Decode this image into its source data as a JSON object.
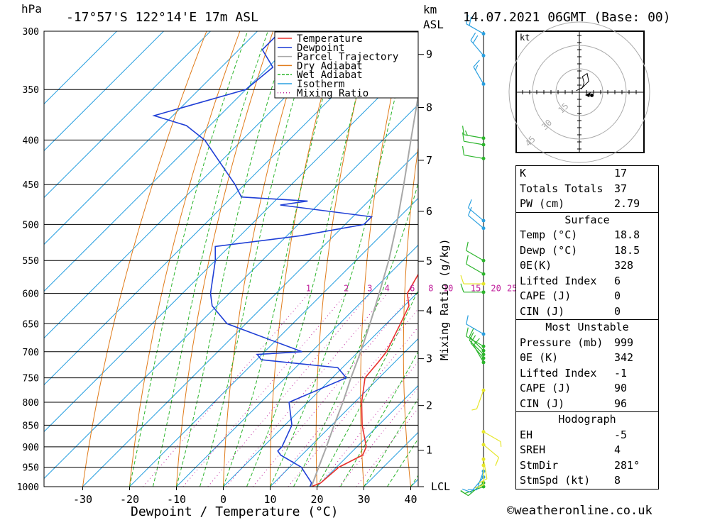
{
  "header": {
    "hpa_unit": "hPa",
    "location": "-17°57'S 122°14'E 17m ASL",
    "km_unit": "km",
    "asl": "ASL",
    "date": "14.07.2021 06GMT (Base: 00)"
  },
  "hodo_unit": "kt",
  "colors": {
    "temperature": "#e8302c",
    "dewpoint": "#1f3fd6",
    "parcel": "#a8a8a8",
    "dry_adiabat": "#e07b1a",
    "wet_adiabat": "#2cb52c",
    "isotherm": "#2aa0e0",
    "mixing_ratio": "#c0209c"
  },
  "chart_data": {
    "type": "line",
    "title": "",
    "xlabel": "Dewpoint / Temperature (°C)",
    "ylabel": "hPa",
    "y2label": "Mixing Ratio (g/kg)",
    "xlim": [
      -40,
      40
    ],
    "ylim": [
      1000,
      300
    ],
    "x_ticks": [
      -30,
      -20,
      -10,
      0,
      10,
      20,
      30,
      40
    ],
    "pressure_ticks": [
      1000,
      950,
      900,
      850,
      800,
      750,
      700,
      650,
      600,
      550,
      500,
      450,
      400,
      350,
      300
    ],
    "height_ticks": [
      {
        "label": "1",
        "p": 908
      },
      {
        "label": "2",
        "p": 807
      },
      {
        "label": "3",
        "p": 713
      },
      {
        "label": "4",
        "p": 628
      },
      {
        "label": "5",
        "p": 551
      },
      {
        "label": "6",
        "p": 483
      },
      {
        "label": "7",
        "p": 422
      },
      {
        "label": "8",
        "p": 367
      },
      {
        "label": "9",
        "p": 319
      },
      {
        "label": "LCL",
        "p": 1000
      }
    ],
    "mixing_ratio_labels": [
      "1",
      "2",
      "3",
      "4",
      "6",
      "8",
      "10",
      "15",
      "20",
      "25"
    ],
    "legend": [
      "Temperature",
      "Dewpoint",
      "Parcel Trajectory",
      "Dry Adiabat",
      "Wet Adiabat",
      "Isotherm",
      "Mixing Ratio"
    ],
    "legend_position": "top-right",
    "series": [
      {
        "name": "Temperature",
        "points": [
          [
            1000,
            18.8
          ],
          [
            990,
            20.0
          ],
          [
            950,
            20.5
          ],
          [
            920,
            23.0
          ],
          [
            900,
            22.0
          ],
          [
            850,
            16.5
          ],
          [
            800,
            11.5
          ],
          [
            750,
            7.0
          ],
          [
            720,
            6.5
          ],
          [
            700,
            6.0
          ],
          [
            650,
            3.0
          ],
          [
            620,
            1.0
          ],
          [
            600,
            -2.0
          ],
          [
            550,
            -5.0
          ],
          [
            530,
            -6.5
          ],
          [
            500,
            -10.0
          ],
          [
            480,
            -11.5
          ],
          [
            460,
            -12.0
          ],
          [
            450,
            -13.5
          ],
          [
            420,
            -17.0
          ],
          [
            400,
            -21.0
          ],
          [
            385,
            -23.0
          ],
          [
            370,
            -24.0
          ],
          [
            350,
            -28.0
          ]
        ]
      },
      {
        "name": "Dewpoint",
        "points": [
          [
            1000,
            18.5
          ],
          [
            990,
            18.0
          ],
          [
            950,
            12.5
          ],
          [
            920,
            5.5
          ],
          [
            910,
            4.0
          ],
          [
            900,
            4.0
          ],
          [
            850,
            1.5
          ],
          [
            800,
            -4.0
          ],
          [
            750,
            3.0
          ],
          [
            730,
            -1.0
          ],
          [
            715,
            -19.0
          ],
          [
            705,
            -21.0
          ],
          [
            700,
            -12.0
          ],
          [
            650,
            -34.0
          ],
          [
            620,
            -41.0
          ],
          [
            600,
            -44.0
          ],
          [
            550,
            -50.0
          ],
          [
            530,
            -53.0
          ],
          [
            515,
            -37.0
          ],
          [
            500,
            -26.0
          ],
          [
            490,
            -26.0
          ],
          [
            475,
            -48.0
          ],
          [
            470,
            -43.0
          ],
          [
            465,
            -58.0
          ],
          [
            450,
            -62.0
          ],
          [
            400,
            -78.0
          ],
          [
            385,
            -85.0
          ],
          [
            375,
            -94.0
          ],
          [
            350,
            -80.0
          ],
          [
            330,
            -79.0
          ],
          [
            315,
            -85.0
          ],
          [
            300,
            -85.0
          ]
        ]
      },
      {
        "name": "Parcel Trajectory",
        "points": [
          [
            1000,
            18.8
          ],
          [
            950,
            16.2
          ],
          [
            900,
            13.5
          ],
          [
            850,
            10.5
          ],
          [
            800,
            7.5
          ],
          [
            750,
            4.0
          ],
          [
            700,
            0.5
          ],
          [
            650,
            -3.5
          ],
          [
            600,
            -8.0
          ],
          [
            550,
            -13.0
          ],
          [
            500,
            -19.0
          ],
          [
            450,
            -26.0
          ],
          [
            400,
            -34.0
          ],
          [
            350,
            -43.0
          ],
          [
            300,
            -54.0
          ]
        ]
      }
    ],
    "winds": [
      {
        "p": 1000,
        "dir": 250,
        "kt": 5,
        "color": "#2cb52c"
      },
      {
        "p": 990,
        "dir": 230,
        "kt": 10,
        "color": "#2cb52c"
      },
      {
        "p": 975,
        "dir": 220,
        "kt": 10,
        "color": "#2aa0e0"
      },
      {
        "p": 960,
        "dir": 200,
        "kt": 10,
        "color": "#2aa0e0"
      },
      {
        "p": 945,
        "dir": 180,
        "kt": 10,
        "color": "#e6e62a"
      },
      {
        "p": 930,
        "dir": 170,
        "kt": 10,
        "color": "#e6e62a"
      },
      {
        "p": 895,
        "dir": 130,
        "kt": 10,
        "color": "#e6e62a"
      },
      {
        "p": 865,
        "dir": 120,
        "kt": 5,
        "color": "#e6e62a"
      },
      {
        "p": 775,
        "dir": 200,
        "kt": 5,
        "color": "#e6e62a"
      },
      {
        "p": 720,
        "dir": 330,
        "kt": 10,
        "color": "#2cb52c"
      },
      {
        "p": 712,
        "dir": 320,
        "kt": 10,
        "color": "#2cb52c"
      },
      {
        "p": 705,
        "dir": 315,
        "kt": 10,
        "color": "#2cb52c"
      },
      {
        "p": 698,
        "dir": 315,
        "kt": 10,
        "color": "#2cb52c"
      },
      {
        "p": 690,
        "dir": 300,
        "kt": 10,
        "color": "#2cb52c"
      },
      {
        "p": 668,
        "dir": 300,
        "kt": 10,
        "color": "#2aa0e0"
      },
      {
        "p": 598,
        "dir": 270,
        "kt": 10,
        "color": "#2cb52c"
      },
      {
        "p": 585,
        "dir": 270,
        "kt": 10,
        "color": "#e6e62a"
      },
      {
        "p": 570,
        "dir": 300,
        "kt": 10,
        "color": "#2cb52c"
      },
      {
        "p": 550,
        "dir": 300,
        "kt": 10,
        "color": "#2cb52c"
      },
      {
        "p": 505,
        "dir": 310,
        "kt": 10,
        "color": "#2aa0e0"
      },
      {
        "p": 495,
        "dir": 310,
        "kt": 10,
        "color": "#2aa0e0"
      },
      {
        "p": 420,
        "dir": 280,
        "kt": 10,
        "color": "#2cb52c"
      },
      {
        "p": 405,
        "dir": 280,
        "kt": 10,
        "color": "#2cb52c"
      },
      {
        "p": 398,
        "dir": 280,
        "kt": 15,
        "color": "#2cb52c"
      },
      {
        "p": 345,
        "dir": 330,
        "kt": 15,
        "color": "#2aa0e0"
      },
      {
        "p": 320,
        "dir": 320,
        "kt": 20,
        "color": "#2aa0e0"
      },
      {
        "p": 302,
        "dir": 300,
        "kt": 20,
        "color": "#2aa0e0"
      }
    ],
    "hodograph": {
      "rings_kt": [
        15,
        30,
        45
      ],
      "points_uv": [
        [
          -2,
          1
        ],
        [
          2,
          3
        ],
        [
          3,
          6
        ],
        [
          2,
          10
        ],
        [
          5,
          12
        ],
        [
          6,
          7
        ],
        [
          3,
          4
        ],
        [
          1,
          2
        ]
      ],
      "storm_motion_uv": [
        8,
        -2
      ]
    }
  },
  "indices": [
    {
      "label": "K",
      "value": "17"
    },
    {
      "label": "Totals Totals",
      "value": "37"
    },
    {
      "label": "PW (cm)",
      "value": "2.79"
    }
  ],
  "surface": {
    "title": "Surface",
    "rows": [
      {
        "label": "Temp (°C)",
        "value": "18.8"
      },
      {
        "label": "Dewp (°C)",
        "value": "18.5"
      },
      {
        "label": "θE(K)",
        "value": "328"
      },
      {
        "label": "Lifted Index",
        "value": "6"
      },
      {
        "label": "CAPE (J)",
        "value": "0"
      },
      {
        "label": "CIN (J)",
        "value": "0"
      }
    ]
  },
  "most_unstable": {
    "title": "Most Unstable",
    "rows": [
      {
        "label": "Pressure (mb)",
        "value": "999"
      },
      {
        "label": "θE (K)",
        "value": "342"
      },
      {
        "label": "Lifted Index",
        "value": "-1"
      },
      {
        "label": "CAPE (J)",
        "value": "90"
      },
      {
        "label": "CIN (J)",
        "value": "96"
      }
    ]
  },
  "hodograph_table": {
    "title": "Hodograph",
    "rows": [
      {
        "label": "EH",
        "value": "-5"
      },
      {
        "label": "SREH",
        "value": "4"
      },
      {
        "label": "StmDir",
        "value": "281°"
      },
      {
        "label": "StmSpd (kt)",
        "value": "8"
      }
    ]
  },
  "copyright": "©weatheronline.co.uk"
}
